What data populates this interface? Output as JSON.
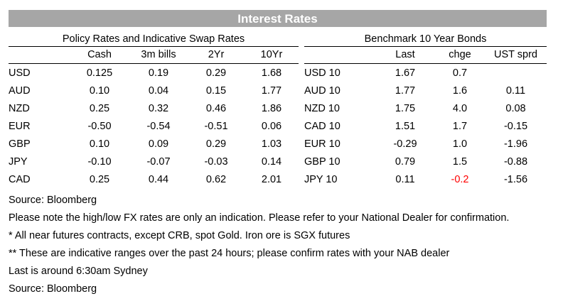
{
  "title": "Interest Rates",
  "policy": {
    "heading": "Policy Rates and Indicative Swap Rates",
    "columns": [
      "Cash",
      "3m bills",
      "2Yr",
      "10Yr"
    ],
    "rows": [
      {
        "ccy": "USD",
        "cash": "0.125",
        "bills3m": "0.19",
        "yr2": "0.29",
        "yr10": "1.68"
      },
      {
        "ccy": "AUD",
        "cash": "0.10",
        "bills3m": "0.04",
        "yr2": "0.15",
        "yr10": "1.77"
      },
      {
        "ccy": "NZD",
        "cash": "0.25",
        "bills3m": "0.32",
        "yr2": "0.46",
        "yr10": "1.86"
      },
      {
        "ccy": "EUR",
        "cash": "-0.50",
        "bills3m": "-0.54",
        "yr2": "-0.51",
        "yr10": "0.06"
      },
      {
        "ccy": "GBP",
        "cash": "0.10",
        "bills3m": "0.09",
        "yr2": "0.29",
        "yr10": "1.03"
      },
      {
        "ccy": "JPY",
        "cash": "-0.10",
        "bills3m": "-0.07",
        "yr2": "-0.03",
        "yr10": "0.14"
      },
      {
        "ccy": "CAD",
        "cash": "0.25",
        "bills3m": "0.44",
        "yr2": "0.62",
        "yr10": "2.01"
      }
    ]
  },
  "bonds": {
    "heading": "Benchmark 10 Year Bonds",
    "columns": [
      "Last",
      "chge",
      "UST sprd"
    ],
    "rows": [
      {
        "name": "USD 10",
        "last": "1.67",
        "chge": "0.7",
        "sprd": ""
      },
      {
        "name": "AUD 10",
        "last": "1.77",
        "chge": "1.6",
        "sprd": "0.11"
      },
      {
        "name": "NZD 10",
        "last": "1.75",
        "chge": "4.0",
        "sprd": "0.08"
      },
      {
        "name": "CAD 10",
        "last": "1.51",
        "chge": "1.7",
        "sprd": "-0.15"
      },
      {
        "name": "EUR 10",
        "last": "-0.29",
        "chge": "1.0",
        "sprd": "-1.96"
      },
      {
        "name": "GBP 10",
        "last": "0.79",
        "chge": "1.5",
        "sprd": "-0.88"
      },
      {
        "name": "JPY 10",
        "last": "0.11",
        "chge": "-0.2",
        "sprd": "-1.56"
      }
    ],
    "negative_change_color": "#ff0000"
  },
  "notes": [
    "Source: Bloomberg",
    "Please note the high/low FX rates are only an indication. Please refer to your National Dealer for confirmation.",
    "* All near futures contracts, except CRB, spot Gold.  Iron ore is SGX futures",
    "** These are indicative ranges over the past 24 hours; please confirm rates with your NAB dealer",
    "Last is around 6:30am Sydney",
    "Source: Bloomberg"
  ],
  "colors": {
    "title_bar": "#a6a6a6",
    "title_text": "#ffffff"
  }
}
